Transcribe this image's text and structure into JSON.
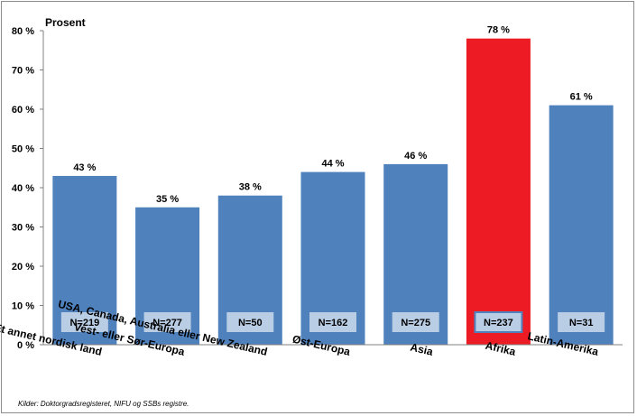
{
  "chart_data": {
    "type": "bar",
    "ylabel": "Prosent",
    "ylim": [
      0,
      80
    ],
    "yticks": [
      "0 %",
      "10 %",
      "20 %",
      "30 %",
      "40 %",
      "50 %",
      "60 %",
      "70 %",
      "80 %"
    ],
    "grid": false,
    "legend": "none",
    "categories": [
      "Et annet nordisk land",
      "Vest- eller Sør-Europa",
      "USA, Canada, Australia eller New Zealand",
      "Øst-Europa",
      "Asia",
      "Afrika",
      "Latin-Amerika"
    ],
    "values": [
      43,
      35,
      38,
      44,
      46,
      78,
      61
    ],
    "value_labels": [
      "43 %",
      "35 %",
      "38 %",
      "44 %",
      "46 %",
      "78 %",
      "61 %"
    ],
    "n_labels": [
      "N=219",
      "N=277",
      "N=50",
      "N=162",
      "N=275",
      "N=237",
      "N=31"
    ],
    "colors": [
      "#4f81bd",
      "#4f81bd",
      "#4f81bd",
      "#4f81bd",
      "#4f81bd",
      "#ed1c24",
      "#4f81bd"
    ],
    "n_box_color": "#b9cde5"
  },
  "source": "Kilder: Doktorgradsregisteret, NIFU og SSBs registre."
}
